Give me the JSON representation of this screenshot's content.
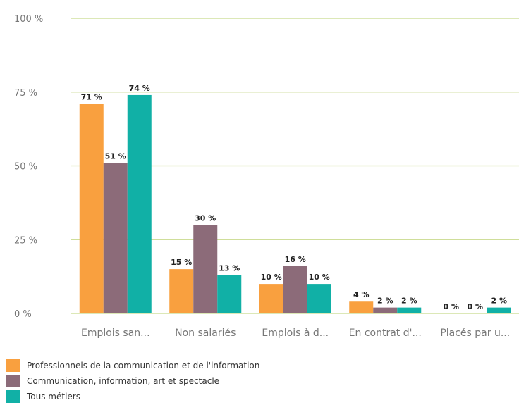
{
  "chart_data": {
    "type": "bar",
    "categories": [
      "Emplois san...",
      "Non salariés",
      "Emplois à d...",
      "En contrat d'...",
      "Placés par u..."
    ],
    "series": [
      {
        "name": "Professionnels de la communication et de l'information",
        "color": "#f9a03f",
        "values": [
          71,
          15,
          10,
          4,
          0
        ],
        "labels": [
          "71 %",
          "15 %",
          "10 %",
          "4 %",
          "0 %"
        ]
      },
      {
        "name": "Communication, information, art et spectacle",
        "color": "#8c6b79",
        "values": [
          51,
          30,
          16,
          2,
          0
        ],
        "labels": [
          "51 %",
          "30 %",
          "16 %",
          "2 %",
          "0 %"
        ]
      },
      {
        "name": "Tous métiers",
        "color": "#11b0a6",
        "values": [
          74,
          13,
          10,
          2,
          2
        ],
        "labels": [
          "74 %",
          "13 %",
          "10 %",
          "2 %",
          "2 %"
        ]
      }
    ],
    "yticks": [
      {
        "value": 0,
        "label": "0 %"
      },
      {
        "value": 25,
        "label": "25 %"
      },
      {
        "value": 50,
        "label": "50 %"
      },
      {
        "value": 75,
        "label": "75 %"
      },
      {
        "value": 100,
        "label": "100 %"
      }
    ],
    "ylim": [
      0,
      100
    ],
    "grid": true,
    "grid_color": "#c8d98c",
    "legend_position": "bottom-left"
  }
}
